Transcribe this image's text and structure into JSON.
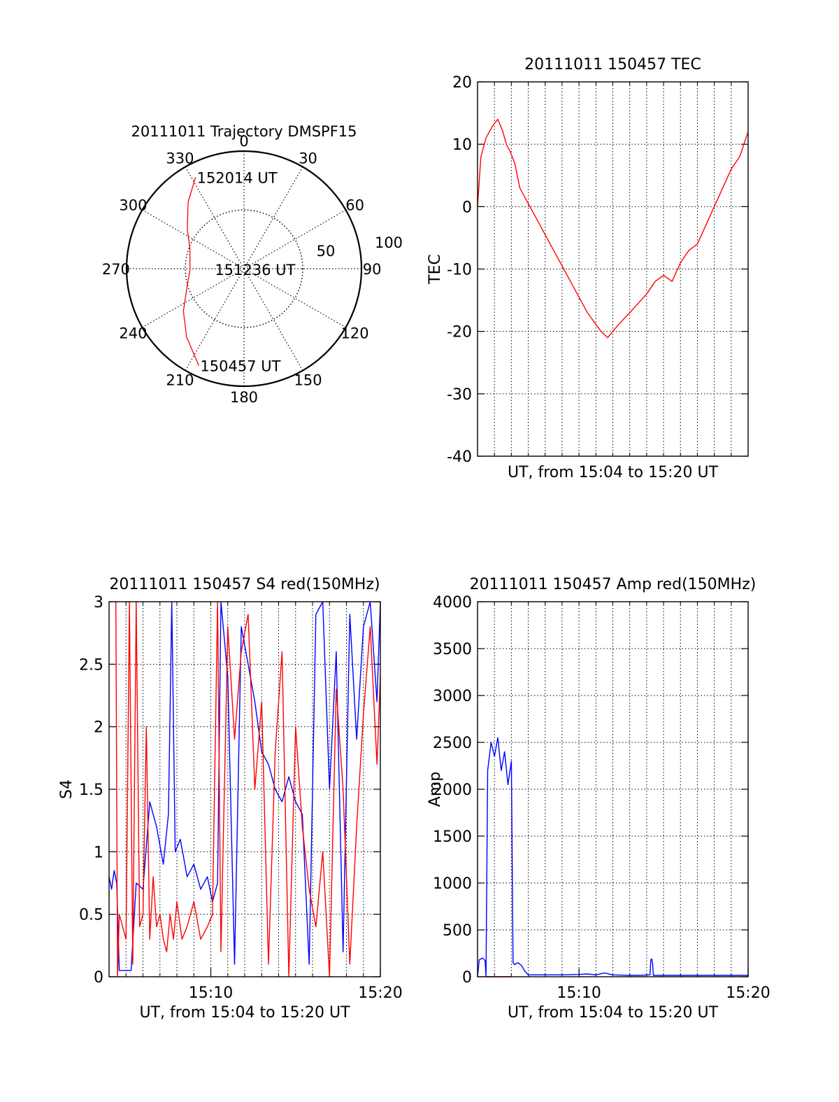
{
  "chart_data": [
    {
      "type": "polar",
      "title": "20111011 Trajectory DMSPF15",
      "angle_labels": [
        "0",
        "30",
        "60",
        "90",
        "120",
        "150",
        "180",
        "210",
        "240",
        "270",
        "300",
        "330"
      ],
      "radial_labels": [
        "50",
        "100"
      ],
      "radial_range": [
        0,
        100
      ],
      "grid": true,
      "annotations": [
        {
          "text": "152014 UT",
          "az": 332,
          "r": 88
        },
        {
          "text": "151236 UT",
          "az": 269,
          "r": 26
        },
        {
          "text": "150457 UT",
          "az": 205,
          "r": 91
        }
      ],
      "series": [
        {
          "color": "#ff0000",
          "az": [
            332,
            320,
            305,
            290,
            269,
            250,
            235,
            220,
            205
          ],
          "r": [
            88,
            74,
            59,
            49,
            46,
            52,
            63,
            76,
            91
          ]
        }
      ]
    },
    {
      "type": "line",
      "title": "20111011 150457 TEC",
      "xlabel": "UT, from 15:04 to 15:20 UT",
      "ylabel": "TEC",
      "xlim": [
        0,
        16
      ],
      "ylim": [
        -40,
        20
      ],
      "yticks": [
        "-40",
        "-30",
        "-20",
        "-10",
        "0",
        "10",
        "20"
      ],
      "grid": true,
      "series": [
        {
          "color": "#ff0000",
          "x": [
            0,
            0.2,
            0.5,
            0.9,
            1.2,
            1.5,
            1.7,
            1.9,
            2.2,
            2.5,
            2.9,
            3.5,
            4.5,
            5.5,
            6.5,
            7.3,
            7.7,
            8.3,
            9.0,
            10.0,
            10.5,
            11.0,
            11.5,
            12.0,
            12.5,
            13.0,
            13.5,
            14.0,
            14.5,
            15.0,
            15.5,
            16.0
          ],
          "y": [
            0,
            8,
            11,
            13,
            14,
            12,
            10,
            9,
            7,
            3,
            1,
            -2,
            -7,
            -12,
            -17,
            -20,
            -21,
            -19,
            -17,
            -14,
            -12,
            -11,
            -12,
            -9,
            -7,
            -6,
            -3,
            0,
            3,
            6,
            8,
            12
          ]
        }
      ]
    },
    {
      "type": "line",
      "title": "20111011 150457 S4 red(150MHz)",
      "xlabel": "UT, from 15:04 to 15:20 UT",
      "ylabel": "S4",
      "xlim": [
        0,
        16
      ],
      "ylim": [
        0,
        3
      ],
      "yticks": [
        "0",
        "0.5",
        "1",
        "1.5",
        "2",
        "2.5",
        "3"
      ],
      "xticks": [
        {
          "label": "15:10",
          "x": 6
        },
        {
          "label": "15:20",
          "x": 16
        }
      ],
      "grid": true,
      "series": [
        {
          "color": "#0000ff",
          "x": [
            0,
            0.15,
            0.3,
            0.45,
            0.6,
            0.8,
            1.0,
            1.3,
            1.6,
            2.0,
            2.4,
            2.8,
            3.2,
            3.5,
            3.7,
            3.9,
            4.2,
            4.6,
            5.0,
            5.4,
            5.8,
            6.1,
            6.4,
            6.6,
            7.0,
            7.4,
            7.8,
            8.2,
            8.6,
            9.0,
            9.4,
            9.8,
            10.2,
            10.6,
            11.0,
            11.4,
            11.8,
            12.2,
            12.6,
            13.0,
            13.4,
            13.8,
            14.2,
            14.6,
            15.0,
            15.4,
            15.8,
            16.0
          ],
          "y": [
            0.8,
            0.7,
            0.85,
            0.75,
            0.05,
            0.05,
            0.05,
            0.05,
            0.75,
            0.7,
            1.4,
            1.2,
            0.9,
            1.3,
            3.0,
            1.0,
            1.1,
            0.8,
            0.9,
            0.7,
            0.8,
            0.6,
            0.75,
            3.0,
            2.4,
            0.1,
            2.8,
            2.5,
            2.2,
            1.8,
            1.7,
            1.5,
            1.4,
            1.6,
            1.4,
            1.3,
            0.1,
            2.9,
            3.0,
            1.5,
            2.6,
            0.2,
            2.9,
            1.9,
            2.8,
            3.0,
            2.2,
            3.0
          ]
        },
        {
          "color": "#ff0000",
          "x": [
            0.4,
            0.5,
            0.6,
            0.8,
            1.0,
            1.2,
            1.4,
            1.6,
            1.8,
            2.0,
            2.2,
            2.4,
            2.6,
            2.8,
            3.0,
            3.2,
            3.4,
            3.6,
            3.8,
            4.0,
            4.3,
            4.6,
            5.0,
            5.4,
            5.8,
            6.1,
            6.4,
            6.6,
            7.0,
            7.4,
            7.8,
            8.2,
            8.6,
            9.0,
            9.4,
            9.8,
            10.2,
            10.6,
            11.0,
            11.4,
            11.8,
            12.2,
            12.6,
            13.0,
            13.4,
            13.8,
            14.2,
            14.6,
            15.0,
            15.4,
            15.8,
            16.0
          ],
          "y": [
            3.0,
            0.0,
            0.5,
            0.4,
            0.3,
            3.0,
            0.1,
            3.0,
            0.4,
            0.5,
            2.0,
            0.3,
            0.8,
            0.4,
            0.5,
            0.3,
            0.2,
            0.5,
            0.3,
            0.6,
            0.3,
            0.4,
            0.6,
            0.3,
            0.4,
            0.5,
            3.0,
            0.2,
            2.8,
            1.9,
            2.6,
            2.9,
            1.5,
            2.2,
            0.1,
            1.8,
            2.6,
            0.0,
            2.0,
            1.2,
            0.7,
            0.4,
            1.0,
            0.0,
            2.3,
            1.5,
            0.1,
            1.2,
            2.1,
            2.8,
            1.7,
            2.4
          ]
        }
      ]
    },
    {
      "type": "line",
      "title": "20111011 150457 Amp red(150MHz)",
      "xlabel": "UT, from 15:04 to 15:20 UT",
      "ylabel": "Amp",
      "xlim": [
        0,
        16
      ],
      "ylim": [
        0,
        4000
      ],
      "yticks": [
        "0",
        "500",
        "1000",
        "1500",
        "2000",
        "2500",
        "3000",
        "3500",
        "4000"
      ],
      "xticks": [
        {
          "label": "15:10",
          "x": 6
        },
        {
          "label": "15:20",
          "x": 16
        }
      ],
      "grid": true,
      "series": [
        {
          "color": "#0000ff",
          "x": [
            0,
            0.1,
            0.3,
            0.45,
            0.5,
            0.6,
            0.8,
            1.0,
            1.2,
            1.4,
            1.6,
            1.8,
            2.0,
            2.1,
            2.2,
            2.4,
            2.6,
            2.8,
            3.0,
            4.0,
            5.0,
            6.0,
            6.5,
            7.0,
            7.5,
            8.0,
            9.0,
            9.5,
            10.2,
            10.25,
            10.3,
            10.35,
            10.4,
            11.0,
            12.0,
            13.0,
            14.0,
            15.0,
            16.0
          ],
          "y": [
            0,
            180,
            200,
            170,
            0,
            2200,
            2500,
            2350,
            2550,
            2200,
            2400,
            2050,
            2300,
            150,
            130,
            150,
            120,
            60,
            20,
            20,
            20,
            25,
            30,
            20,
            40,
            20,
            15,
            15,
            20,
            180,
            190,
            150,
            15,
            15,
            15,
            15,
            15,
            15,
            15
          ]
        },
        {
          "color": "#ff0000",
          "x": [
            0.5,
            2.0
          ],
          "y": [
            0,
            0
          ]
        }
      ]
    }
  ]
}
